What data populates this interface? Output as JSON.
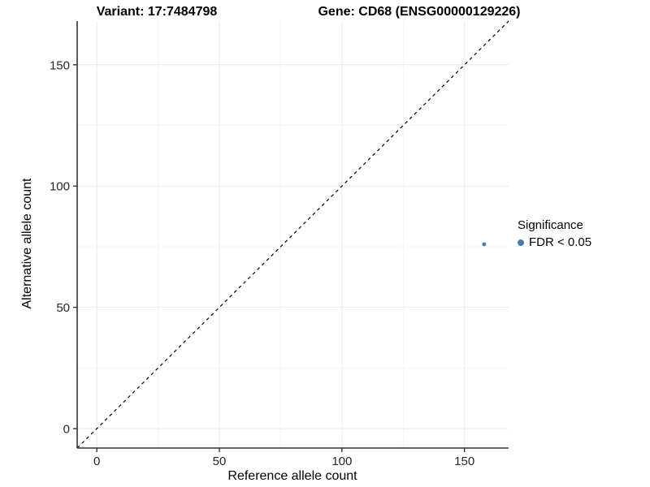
{
  "chart_data": {
    "type": "scatter",
    "title_left": "Variant: 17:7484798",
    "title_right": "Gene: CD68 (ENSG00000129226)",
    "xlabel": "Reference allele count",
    "ylabel": "Alternative allele count",
    "xlim": [
      -8,
      168
    ],
    "ylim": [
      -8,
      168
    ],
    "x_ticks": [
      0,
      50,
      100,
      150
    ],
    "y_ticks": [
      0,
      50,
      100,
      150
    ],
    "x_minor_ticks": [
      25,
      75,
      125
    ],
    "y_minor_ticks": [
      25,
      75,
      125
    ],
    "grid": true,
    "identity_line": {
      "style": "dashed",
      "color": "#000000"
    },
    "series": [
      {
        "name": "FDR < 0.05",
        "color": "#4a7ab2",
        "points": [
          {
            "x": 158,
            "y": 76
          }
        ]
      }
    ],
    "legend": {
      "title": "Significance",
      "position": "right",
      "items": [
        {
          "label": "FDR < 0.05",
          "color": "#4a7ab2"
        }
      ]
    }
  },
  "colors": {
    "grid_major": "#e9e9e9",
    "grid_minor": "#f5f5f5",
    "axis": "#333333"
  }
}
